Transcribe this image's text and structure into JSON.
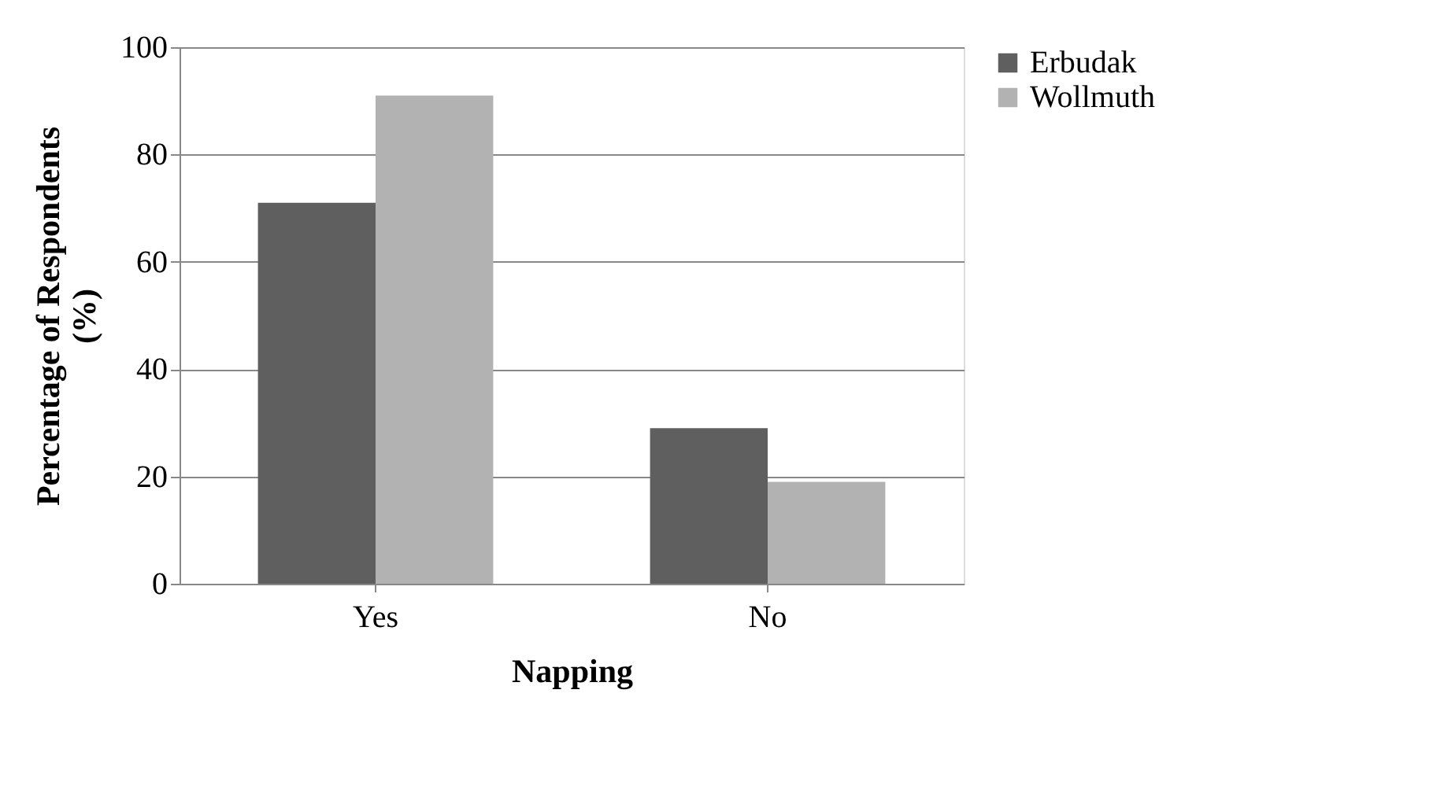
{
  "chart_data": {
    "type": "bar",
    "xlabel": "Napping",
    "ylabel": "Percentage of Respondents (%)",
    "categories": [
      "Yes",
      "No"
    ],
    "series": [
      {
        "name": "Erbudak",
        "color": "#5f5f5f",
        "values": [
          71,
          29
        ]
      },
      {
        "name": "Wollmuth",
        "color": "#b2b2b2",
        "values": [
          91,
          19
        ]
      }
    ],
    "ylim": [
      0,
      100
    ],
    "yticks": [
      0,
      20,
      40,
      60,
      80,
      100
    ],
    "grid": "y",
    "legend": "right"
  }
}
